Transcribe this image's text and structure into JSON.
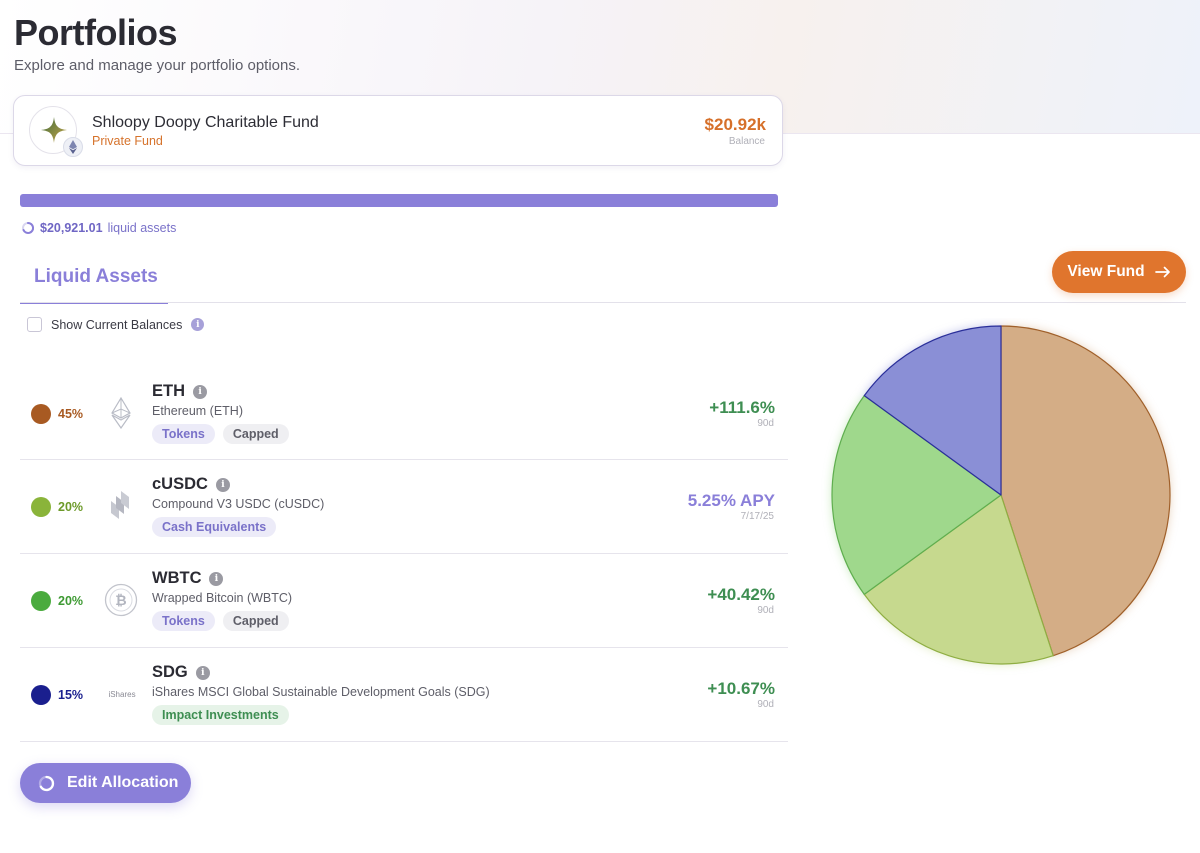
{
  "page": {
    "title": "Portfolios",
    "subtitle": "Explore and manage your portfolio options."
  },
  "fund": {
    "name": "Shloopy Doopy Charitable Fund",
    "type": "Private Fund",
    "balance": "$20.92k",
    "balance_label": "Balance"
  },
  "liquid": {
    "amount": "$20,921.01",
    "suffix": "liquid assets"
  },
  "tabs": {
    "liquid_assets": "Liquid Assets"
  },
  "buttons": {
    "view_fund": "View Fund",
    "edit_allocation": "Edit Allocation"
  },
  "show_balances": {
    "label": "Show Current Balances",
    "checked": false
  },
  "assets": [
    {
      "percent": "45%",
      "color": "#a85a22",
      "symbol": "ETH",
      "name": "Ethereum (ETH)",
      "tags": [
        "Tokens",
        "Capped"
      ],
      "metric": "+111.6%",
      "metric_sub": "90d",
      "logo": "ethereum-logo"
    },
    {
      "percent": "20%",
      "color": "#8ab43a",
      "symbol": "cUSDC",
      "name": "Compound V3 USDC (cUSDC)",
      "tags": [
        "Cash Equivalents"
      ],
      "metric": "5.25% APY",
      "metric_sub": "7/17/25",
      "logo": "compound-logo"
    },
    {
      "percent": "20%",
      "color": "#4aab3e",
      "symbol": "WBTC",
      "name": "Wrapped Bitcoin (WBTC)",
      "tags": [
        "Tokens",
        "Capped"
      ],
      "metric": "+40.42%",
      "metric_sub": "90d",
      "logo": "bitcoin-logo"
    },
    {
      "percent": "15%",
      "color": "#1a1f8e",
      "symbol": "SDG",
      "name": "iShares MSCI Global Sustainable Development Goals (SDG)",
      "tags": [
        "Impact Investments"
      ],
      "metric": "+10.67%",
      "metric_sub": "90d",
      "logo": "ishares-logo",
      "logo_text": "iShares"
    }
  ],
  "chart_data": {
    "type": "pie",
    "slices": [
      {
        "label": "ETH",
        "value": 45,
        "color": "#d4ad86"
      },
      {
        "label": "cUSDC",
        "value": 20,
        "color": "#c6d98e"
      },
      {
        "label": "WBTC",
        "value": 20,
        "color": "#9fd88c"
      },
      {
        "label": "SDG",
        "value": 15,
        "color": "#8a8fd6"
      }
    ]
  },
  "colors": {
    "accent": "#8a7fd9",
    "orange": "#e0752d",
    "positive": "#3e8e52"
  }
}
